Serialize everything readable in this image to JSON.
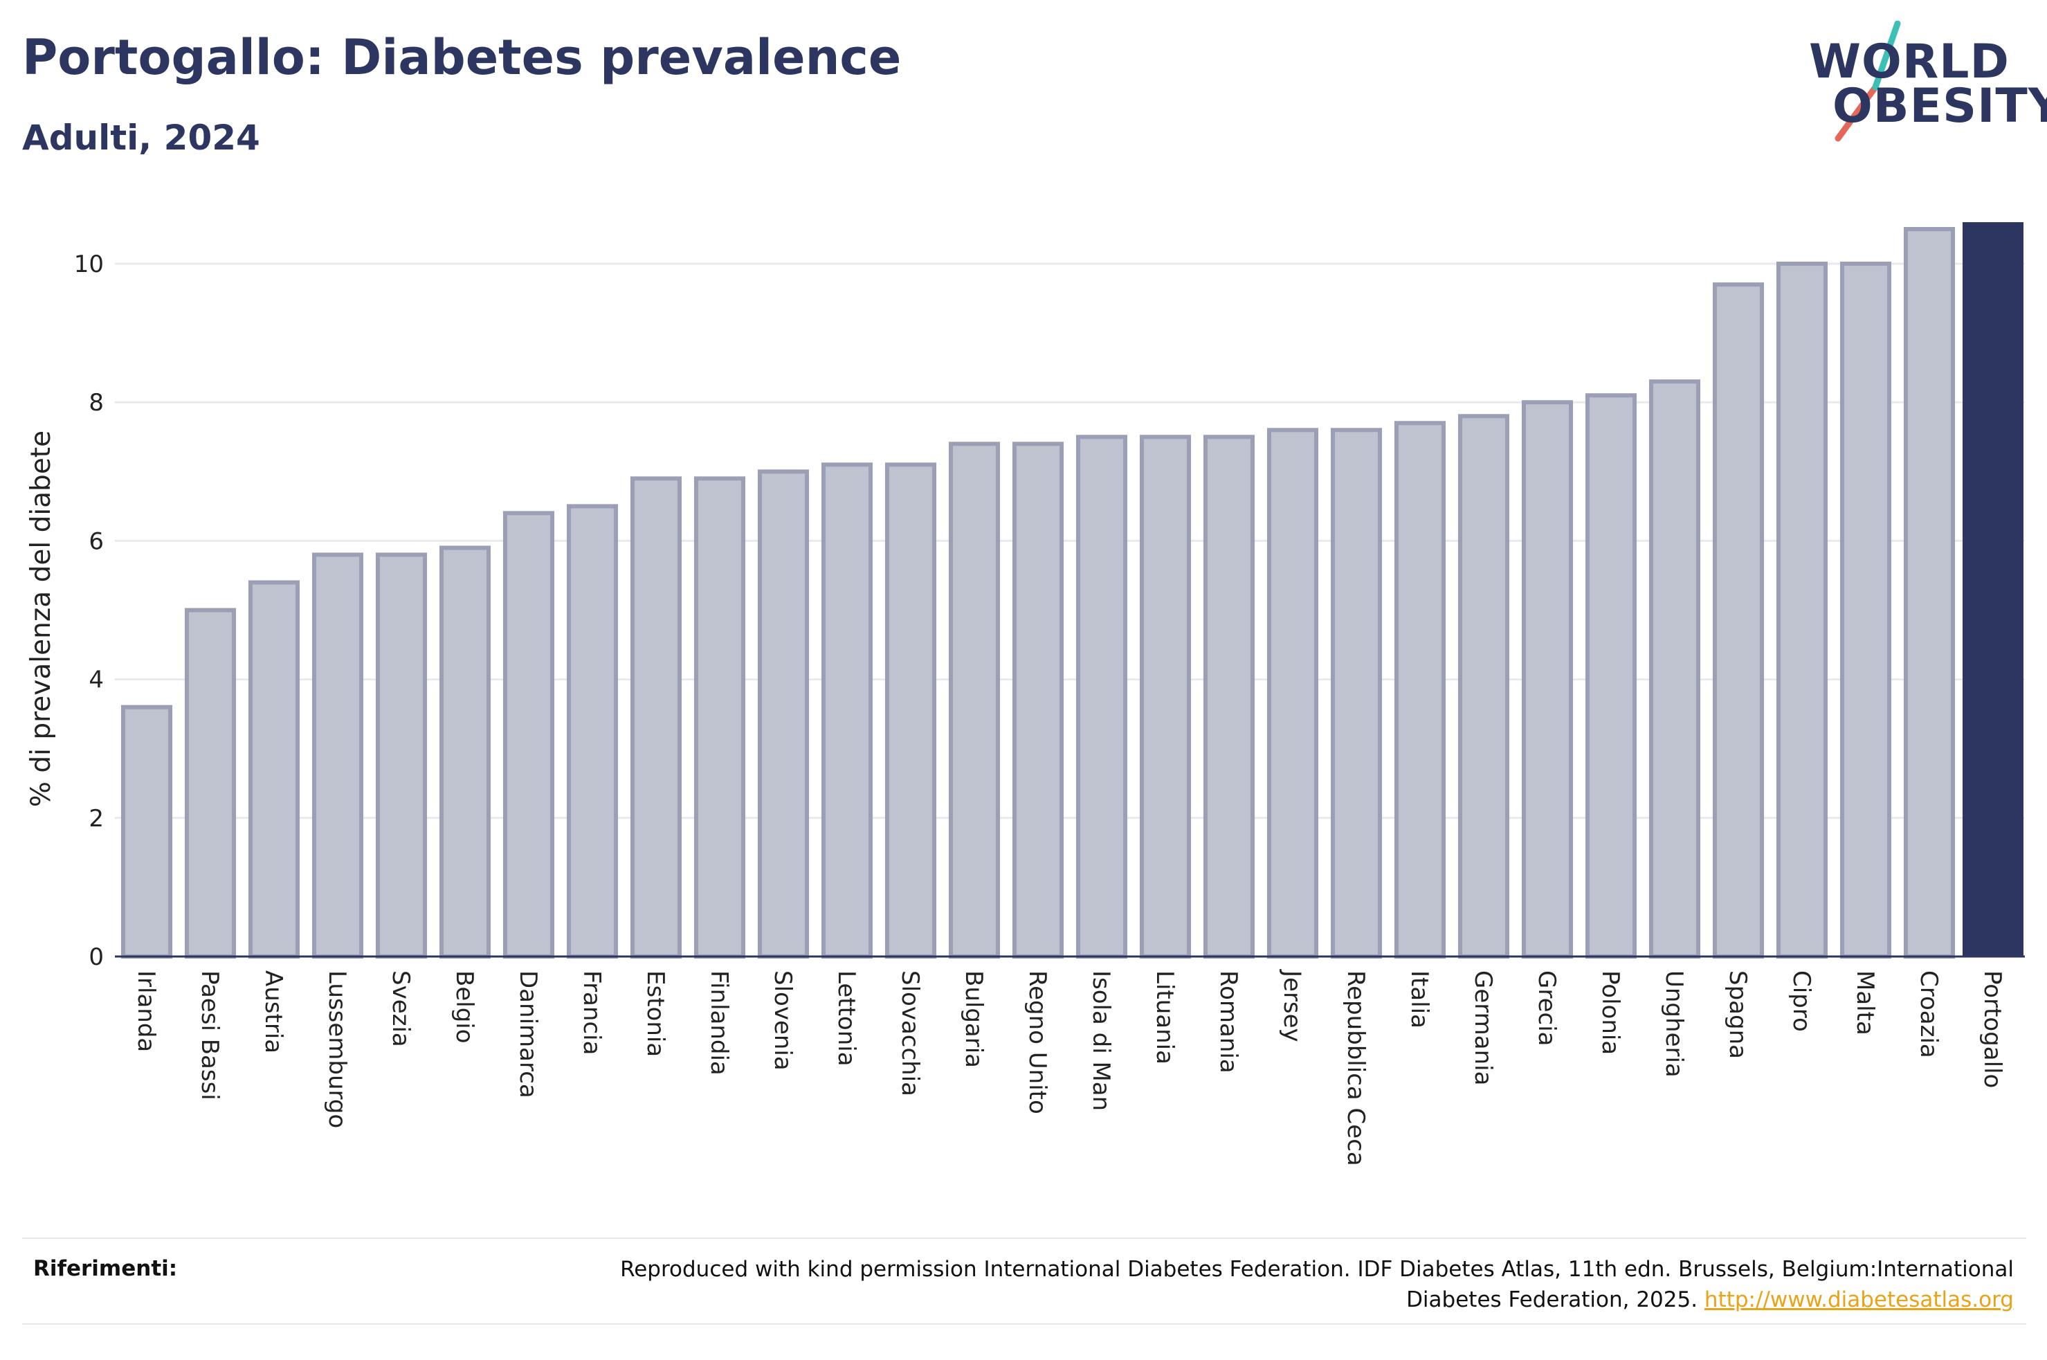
{
  "header": {
    "title": "Portogallo: Diabetes prevalence",
    "subtitle": "Adulti, 2024"
  },
  "logo": {
    "line1": "WORLD",
    "line2": "OBESITY",
    "colors": {
      "text": "#2d3561",
      "slash_teal": "#3cbfb4",
      "slash_coral": "#e4685a"
    }
  },
  "chart_data": {
    "type": "bar",
    "title": "Portogallo: Diabetes prevalence",
    "subtitle": "Adulti, 2024",
    "xlabel": "",
    "ylabel": "% di prevalenza del diabete",
    "ylim": [
      0,
      10.55
    ],
    "yticks": [
      0,
      2,
      4,
      6,
      8,
      10
    ],
    "grid": true,
    "categories": [
      "Irlanda",
      "Paesi Bassi",
      "Austria",
      "Lussemburgo",
      "Svezia",
      "Belgio",
      "Danimarca",
      "Francia",
      "Estonia",
      "Finlandia",
      "Slovenia",
      "Lettonia",
      "Slovacchia",
      "Bulgaria",
      "Regno Unito",
      "Isola di Man",
      "Lituania",
      "Romania",
      "Jersey",
      "Repubblica Ceca",
      "Italia",
      "Germania",
      "Grecia",
      "Polonia",
      "Ungheria",
      "Spagna",
      "Cipro",
      "Malta",
      "Croazia",
      "Portogallo"
    ],
    "values": [
      3.6,
      5.0,
      5.4,
      5.8,
      5.8,
      5.9,
      6.4,
      6.5,
      6.9,
      6.9,
      7.0,
      7.1,
      7.1,
      7.4,
      7.4,
      7.5,
      7.5,
      7.5,
      7.6,
      7.6,
      7.7,
      7.8,
      8.0,
      8.1,
      8.3,
      9.7,
      10.0,
      10.0,
      10.5,
      10.6
    ],
    "highlight": "Portogallo",
    "colors": {
      "bar": "#bfc2cf",
      "bar_border": "#9a9fb5",
      "highlight": "#2d3561",
      "grid": "#e8e9ee",
      "axis": "#2d3561"
    }
  },
  "references": {
    "label": "Riferimenti:",
    "text": "Reproduced with kind permission International Diabetes Federation. IDF Diabetes Atlas, 11th edn. Brussels, Belgium:International Diabetes Federation, 2025.",
    "link_text": "http://www.diabetesatlas.org"
  }
}
